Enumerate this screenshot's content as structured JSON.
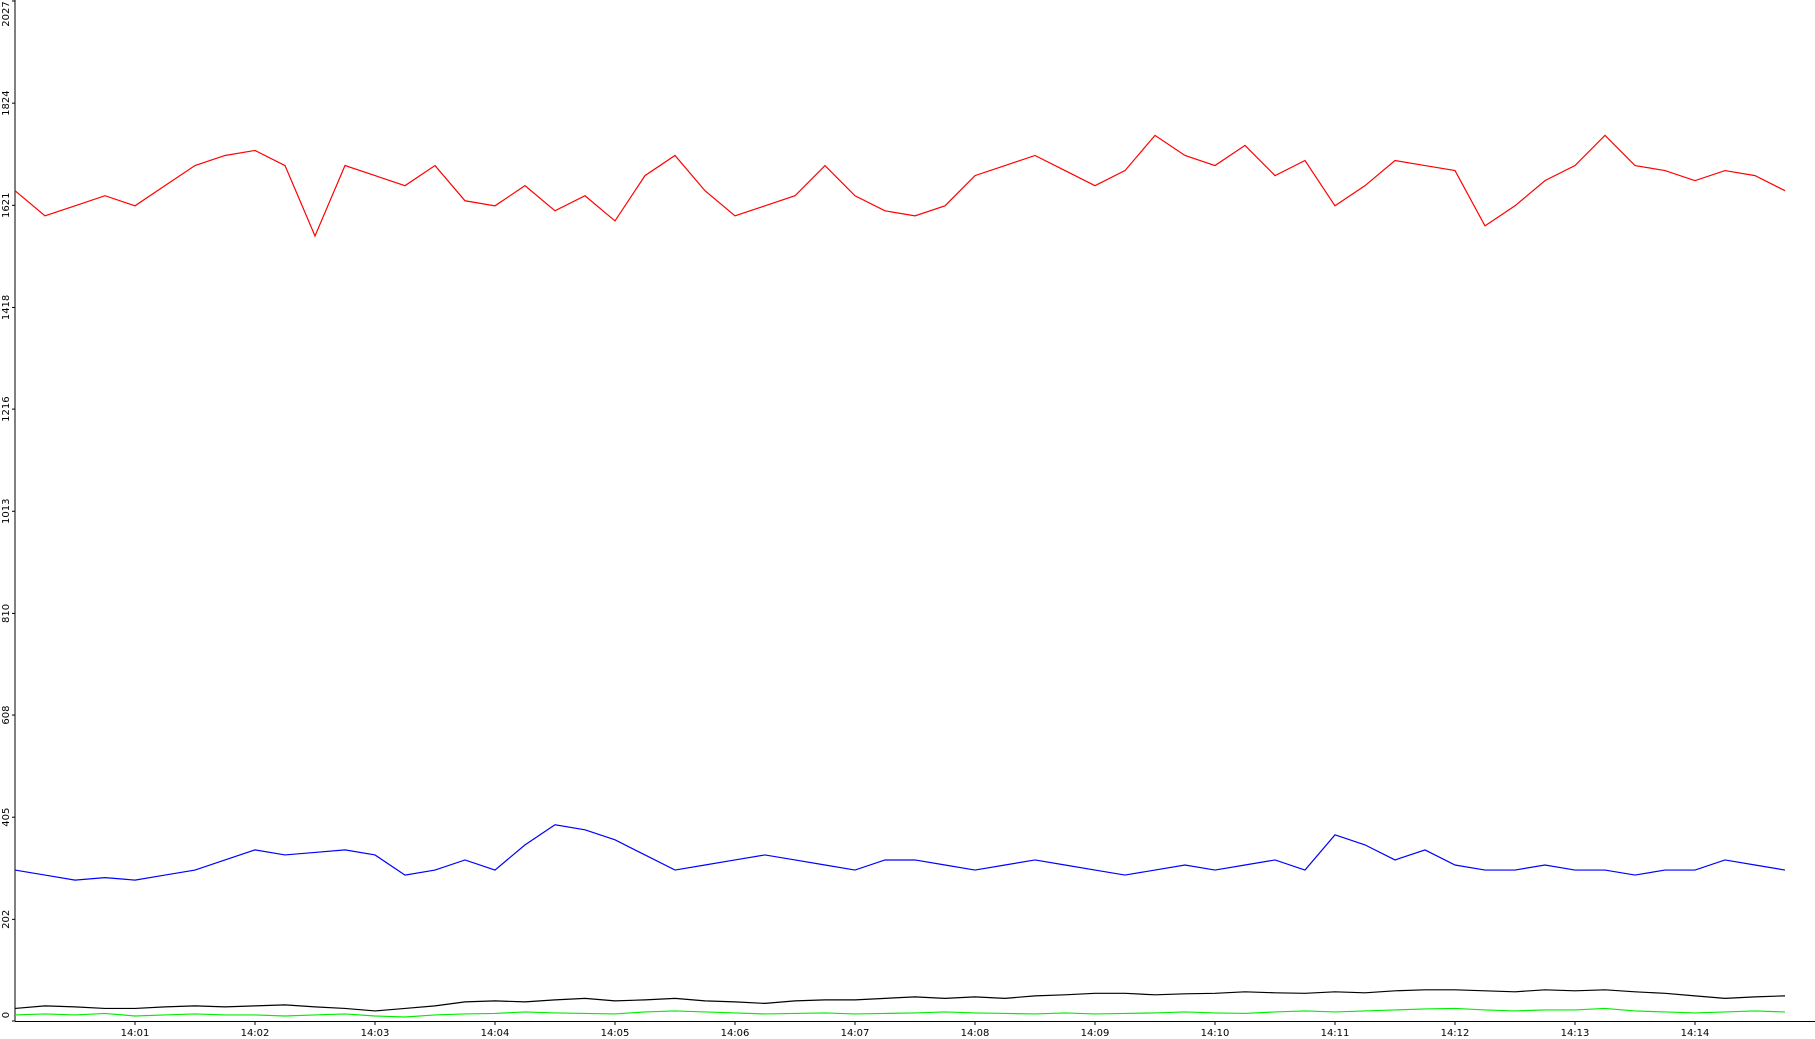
{
  "chart_data": {
    "type": "line",
    "categories": [
      null,
      null,
      null,
      null,
      "14:01",
      null,
      null,
      null,
      "14:02",
      null,
      null,
      null,
      "14:03",
      null,
      null,
      null,
      "14:04",
      null,
      null,
      null,
      "14:05",
      null,
      null,
      null,
      "14:06",
      null,
      null,
      null,
      "14:07",
      null,
      null,
      null,
      "14:08",
      null,
      null,
      null,
      "14:09",
      null,
      null,
      null,
      "14:10",
      null,
      null,
      null,
      "14:11",
      null,
      null,
      null,
      "14:12",
      null,
      null,
      null,
      "14:13",
      null,
      null,
      null,
      "14:14",
      null,
      null,
      null
    ],
    "series": [
      {
        "color": "#ff0000",
        "values": [
          1650,
          1600,
          1620,
          1640,
          1620,
          1660,
          1700,
          1720,
          1730,
          1700,
          1560,
          1700,
          1680,
          1660,
          1700,
          1630,
          1620,
          1660,
          1610,
          1640,
          1590,
          1680,
          1720,
          1650,
          1600,
          1620,
          1640,
          1700,
          1640,
          1610,
          1600,
          1620,
          1680,
          1700,
          1720,
          1690,
          1660,
          1690,
          1760,
          1720,
          1700,
          1740,
          1680,
          1710,
          1620,
          1660,
          1710,
          1700,
          1690,
          1580,
          1620,
          1670,
          1700,
          1760,
          1700,
          1690,
          1670,
          1690,
          1680,
          1650
        ]
      },
      {
        "color": "#0000ff",
        "values": [
          300,
          290,
          280,
          285,
          280,
          290,
          300,
          320,
          340,
          330,
          335,
          340,
          330,
          290,
          300,
          320,
          300,
          350,
          390,
          380,
          360,
          330,
          300,
          310,
          320,
          330,
          320,
          310,
          300,
          320,
          320,
          310,
          300,
          310,
          320,
          310,
          300,
          290,
          300,
          310,
          300,
          310,
          320,
          300,
          370,
          350,
          320,
          340,
          310,
          300,
          300,
          310,
          300,
          300,
          290,
          300,
          300,
          320,
          310,
          300
        ]
      },
      {
        "color": "#000000",
        "values": [
          25,
          30,
          28,
          25,
          25,
          28,
          30,
          28,
          30,
          32,
          28,
          25,
          20,
          25,
          30,
          38,
          40,
          38,
          42,
          45,
          40,
          42,
          45,
          40,
          38,
          35,
          40,
          42,
          42,
          45,
          48,
          45,
          48,
          45,
          50,
          52,
          55,
          55,
          52,
          54,
          55,
          58,
          56,
          55,
          58,
          56,
          60,
          62,
          62,
          60,
          58,
          62,
          60,
          62,
          58,
          55,
          50,
          45,
          48,
          50
        ]
      },
      {
        "color": "#00ee00",
        "values": [
          12,
          14,
          12,
          15,
          10,
          12,
          14,
          12,
          12,
          10,
          12,
          14,
          10,
          8,
          12,
          14,
          15,
          18,
          16,
          15,
          14,
          18,
          20,
          18,
          16,
          14,
          15,
          16,
          14,
          15,
          16,
          18,
          16,
          15,
          14,
          16,
          14,
          15,
          16,
          18,
          16,
          15,
          18,
          20,
          18,
          20,
          22,
          24,
          25,
          22,
          20,
          22,
          22,
          25,
          20,
          18,
          16,
          18,
          20,
          18
        ]
      }
    ],
    "ylim": [
      0,
      2027
    ],
    "yticks": [
      0,
      202,
      405,
      608,
      810,
      1013,
      1216,
      1418,
      1621,
      1824,
      2027
    ]
  }
}
